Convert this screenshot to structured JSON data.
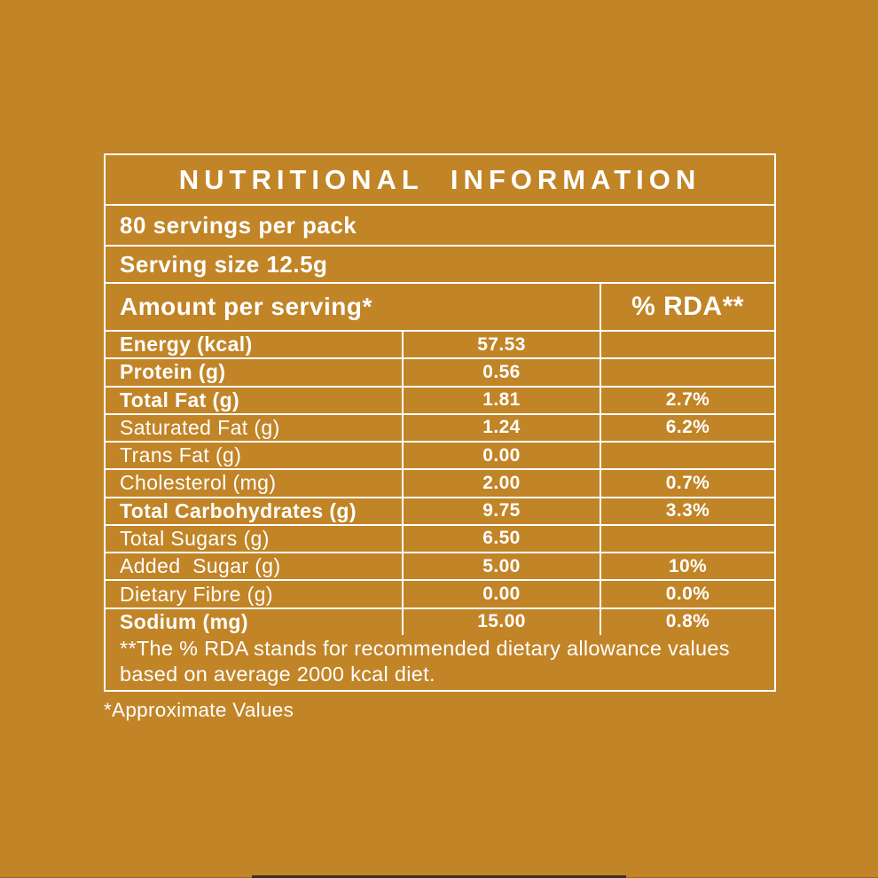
{
  "colors": {
    "background": "#c18427",
    "foreground": "#ffffff"
  },
  "table": {
    "title": "NUTRITIONAL INFORMATION",
    "servings_per_pack": "80 servings per pack",
    "serving_size": "Serving size 12.5g",
    "columns": {
      "amount_header": "Amount per serving*",
      "rda_header": "% RDA**"
    },
    "rows": [
      {
        "label": "Energy (kcal)",
        "amount": "57.53",
        "rda": "",
        "bold": true
      },
      {
        "label": "Protein (g)",
        "amount": "0.56",
        "rda": "",
        "bold": true
      },
      {
        "label": "Total Fat (g)",
        "amount": "1.81",
        "rda": "2.7%",
        "bold": true
      },
      {
        "label": "Saturated Fat (g)",
        "amount": "1.24",
        "rda": "6.2%",
        "bold": false
      },
      {
        "label": "Trans Fat (g)",
        "amount": "0.00",
        "rda": "",
        "bold": false
      },
      {
        "label": "Cholesterol (mg)",
        "amount": "2.00",
        "rda": "0.7%",
        "bold": false
      },
      {
        "label": "Total Carbohydrates (g)",
        "amount": "9.75",
        "rda": "3.3%",
        "bold": true
      },
      {
        "label": "Total Sugars (g)",
        "amount": "6.50",
        "rda": "",
        "bold": false
      },
      {
        "label": "Added  Sugar (g)",
        "amount": "5.00",
        "rda": "10%",
        "bold": false
      },
      {
        "label": "Dietary Fibre (g)",
        "amount": "0.00",
        "rda": "0.0%",
        "bold": false
      },
      {
        "label": "Sodium (mg)",
        "amount": "15.00",
        "rda": "0.8%",
        "bold": true
      }
    ],
    "footnote": "**The % RDA stands for recommended dietary allowance values based on average 2000 kcal diet."
  },
  "approximate_note": "*Approximate Values"
}
